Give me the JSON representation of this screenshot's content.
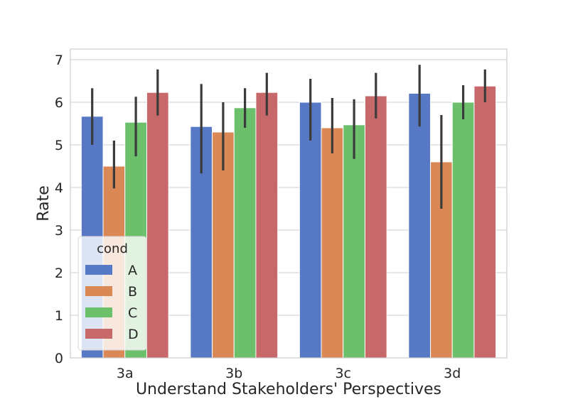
{
  "chart_data": {
    "type": "bar",
    "title": "",
    "xlabel": "Understand Stakeholders' Perspectives",
    "ylabel": "Rate",
    "ylim": [
      0,
      7.25
    ],
    "yticks": [
      0,
      1,
      2,
      3,
      4,
      5,
      6,
      7
    ],
    "grid": true,
    "legend": {
      "title": "cond",
      "placement": "lower-left"
    },
    "categories": [
      "3a",
      "3b",
      "3c",
      "3d"
    ],
    "series": [
      {
        "name": "A",
        "color": "#5778c5",
        "values": [
          5.67,
          5.43,
          6.0,
          6.21
        ],
        "ci_low": [
          5.0,
          4.33,
          5.1,
          5.43
        ],
        "ci_high": [
          6.33,
          6.43,
          6.55,
          6.88
        ]
      },
      {
        "name": "B",
        "color": "#da8856",
        "values": [
          4.5,
          5.3,
          5.4,
          4.6
        ],
        "ci_low": [
          3.98,
          4.4,
          4.8,
          3.5
        ],
        "ci_high": [
          5.1,
          6.0,
          6.1,
          5.7
        ]
      },
      {
        "name": "C",
        "color": "#6cbf6b",
        "values": [
          5.53,
          5.87,
          5.47,
          6.0
        ],
        "ci_low": [
          4.73,
          5.4,
          4.67,
          5.6
        ],
        "ci_high": [
          6.13,
          6.33,
          6.07,
          6.4
        ]
      },
      {
        "name": "D",
        "color": "#c7696a",
        "values": [
          6.23,
          6.23,
          6.15,
          6.38
        ],
        "ci_low": [
          5.69,
          5.69,
          5.62,
          6.0
        ],
        "ci_high": [
          6.77,
          6.69,
          6.69,
          6.77
        ]
      }
    ]
  }
}
